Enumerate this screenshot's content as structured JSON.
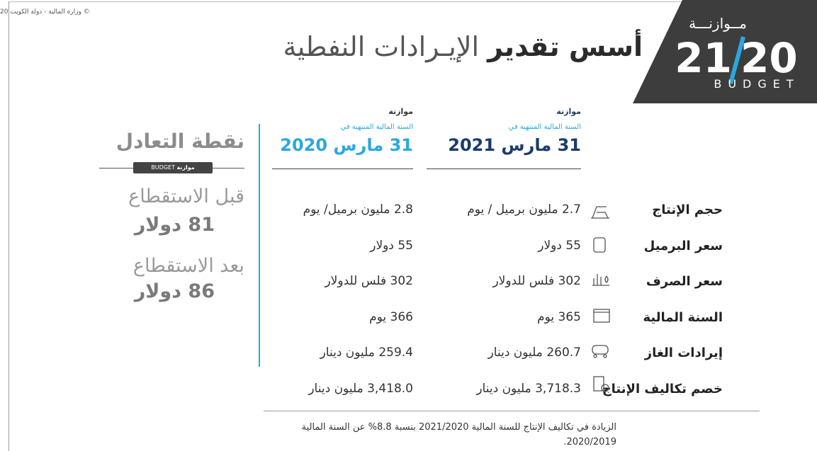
{
  "header": {
    "copyright": "© وزارة المالية - دولة الكويت 20",
    "logo_word": "مــوازنـــة",
    "logo_year_a": "21",
    "logo_year_b": "20",
    "logo_budget": "BUDGET",
    "title_bold": "أسس تقدير",
    "title_light": "الإيـرادات النفطية"
  },
  "columns": [
    {
      "label": "موازنة",
      "subtitle": "السنة المالية المنتهية في",
      "date": "31 مارس 2021"
    },
    {
      "label": "موازنة",
      "subtitle": "السنة المالية المنتهية في",
      "date": "31 مارس 2020"
    }
  ],
  "rows": [
    {
      "label": "حجم الإنتاج",
      "values": [
        "2.7 مليون برميل / يوم",
        "2.8 مليون برميل/ يوم"
      ]
    },
    {
      "label": "سعر البرميل",
      "values": [
        "55 دولار",
        "55 دولار"
      ]
    },
    {
      "label": "سعر الصرف",
      "values": [
        "302 فلس للدولار",
        "302 فلس للدولار"
      ]
    },
    {
      "label": "السنة المالية",
      "values": [
        "365 يوم",
        "366 يوم"
      ]
    },
    {
      "label": "إيرادات الغاز",
      "values": [
        "260.7 مليون دينار",
        "259.4 مليون دينار"
      ]
    },
    {
      "label": "خصم تكاليف الإنتاج",
      "values": [
        "3,718.3 مليون دينار",
        "3,418.0 مليون دينار"
      ]
    }
  ],
  "break_even": {
    "title": "نقطة التعادل",
    "badge_ar": "موازنة",
    "badge_en": "BUDGET",
    "before_label": "قبل الاستقطاع",
    "before_value": "81 دولار",
    "after_label": "بعد الاستقطاع",
    "after_value": "86 دولار"
  },
  "footnote": "الزيادة في تكاليف الإنتاج للسنة المالية 2021/2020 بنسبة 8.8% عن السنة المالية 2020/2019."
}
